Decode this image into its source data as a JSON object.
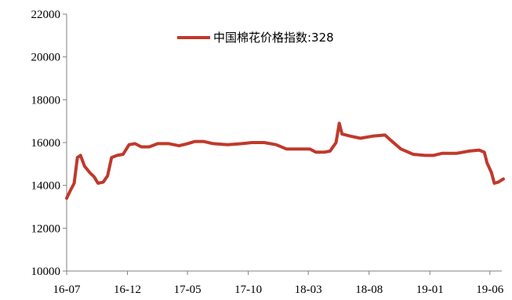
{
  "chart_data": {
    "type": "line",
    "title": "",
    "xlabel": "",
    "ylabel": "",
    "x_tick_labels": [
      "16-07",
      "16-12",
      "17-05",
      "17-10",
      "18-03",
      "18-08",
      "19-01",
      "19-06"
    ],
    "x_range": [
      "2016-07",
      "2019-07"
    ],
    "y_tick_labels": [
      "10000",
      "12000",
      "14000",
      "16000",
      "18000",
      "20000",
      "22000"
    ],
    "ylim": [
      10000,
      22000
    ],
    "grid": false,
    "legend_position": "top-center",
    "series": [
      {
        "name": "中国棉花价格指数:328",
        "color": "#c0392b",
        "points": [
          [
            "2016-07-01",
            13400
          ],
          [
            "2016-07-10",
            13750
          ],
          [
            "2016-07-20",
            14100
          ],
          [
            "2016-07-28",
            15300
          ],
          [
            "2016-08-05",
            15400
          ],
          [
            "2016-08-15",
            14900
          ],
          [
            "2016-08-28",
            14600
          ],
          [
            "2016-09-08",
            14400
          ],
          [
            "2016-09-18",
            14100
          ],
          [
            "2016-10-01",
            14150
          ],
          [
            "2016-10-12",
            14450
          ],
          [
            "2016-10-22",
            15300
          ],
          [
            "2016-11-05",
            15400
          ],
          [
            "2016-11-20",
            15450
          ],
          [
            "2016-12-05",
            15900
          ],
          [
            "2016-12-20",
            15950
          ],
          [
            "2017-01-05",
            15800
          ],
          [
            "2017-01-25",
            15800
          ],
          [
            "2017-02-15",
            15950
          ],
          [
            "2017-03-15",
            15950
          ],
          [
            "2017-04-10",
            15850
          ],
          [
            "2017-05-01",
            15950
          ],
          [
            "2017-05-20",
            16050
          ],
          [
            "2017-06-10",
            16050
          ],
          [
            "2017-07-05",
            15950
          ],
          [
            "2017-08-10",
            15900
          ],
          [
            "2017-09-15",
            15950
          ],
          [
            "2017-10-10",
            16000
          ],
          [
            "2017-11-10",
            16000
          ],
          [
            "2017-12-10",
            15900
          ],
          [
            "2018-01-05",
            15700
          ],
          [
            "2018-02-05",
            15700
          ],
          [
            "2018-03-05",
            15700
          ],
          [
            "2018-03-20",
            15550
          ],
          [
            "2018-04-10",
            15550
          ],
          [
            "2018-04-25",
            15600
          ],
          [
            "2018-05-10",
            16000
          ],
          [
            "2018-05-18",
            16900
          ],
          [
            "2018-05-25",
            16400
          ],
          [
            "2018-06-15",
            16300
          ],
          [
            "2018-07-10",
            16200
          ],
          [
            "2018-08-10",
            16300
          ],
          [
            "2018-09-10",
            16350
          ],
          [
            "2018-09-25",
            16100
          ],
          [
            "2018-10-20",
            15700
          ],
          [
            "2018-11-20",
            15450
          ],
          [
            "2018-12-20",
            15400
          ],
          [
            "2019-01-10",
            15400
          ],
          [
            "2019-02-01",
            15500
          ],
          [
            "2019-03-10",
            15500
          ],
          [
            "2019-04-10",
            15600
          ],
          [
            "2019-05-05",
            15650
          ],
          [
            "2019-05-18",
            15550
          ],
          [
            "2019-05-25",
            15050
          ],
          [
            "2019-06-05",
            14600
          ],
          [
            "2019-06-12",
            14100
          ],
          [
            "2019-06-22",
            14150
          ],
          [
            "2019-07-05",
            14300
          ]
        ]
      }
    ]
  }
}
